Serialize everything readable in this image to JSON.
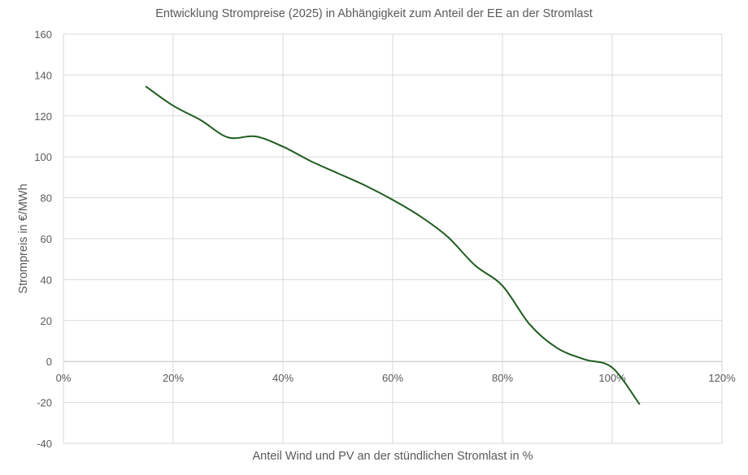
{
  "chart_data": {
    "type": "line",
    "title": "Entwicklung Strompreise (2025) in Abhängigkeit zum Anteil der EE an der Stromlast",
    "xlabel": "Anteil Wind und PV an der stündlichen Stromlast in %",
    "ylabel": "Strompreis in €/MWh",
    "xlim": [
      0,
      120
    ],
    "ylim": [
      -40,
      160
    ],
    "xticks": [
      "0%",
      "20%",
      "40%",
      "60%",
      "80%",
      "100%",
      "120%"
    ],
    "xtick_values": [
      0,
      20,
      40,
      60,
      80,
      100,
      120
    ],
    "yticks": [
      "-40",
      "-20",
      "0",
      "20",
      "40",
      "60",
      "80",
      "100",
      "120",
      "140",
      "160"
    ],
    "ytick_values": [
      -40,
      -20,
      0,
      20,
      40,
      60,
      80,
      100,
      120,
      140,
      160
    ],
    "grid": true,
    "smooth": true,
    "series": [
      {
        "color": "#1e5c1e",
        "x": [
          15,
          20,
          25,
          30,
          35,
          40,
          45,
          50,
          55,
          60,
          65,
          70,
          75,
          80,
          85,
          90,
          95,
          100,
          105
        ],
        "y": [
          134.5,
          125,
          118,
          109.5,
          110,
          105,
          98,
          92,
          86,
          79,
          71,
          61,
          47,
          37,
          18,
          6.5,
          1,
          -3,
          -21
        ]
      }
    ]
  }
}
